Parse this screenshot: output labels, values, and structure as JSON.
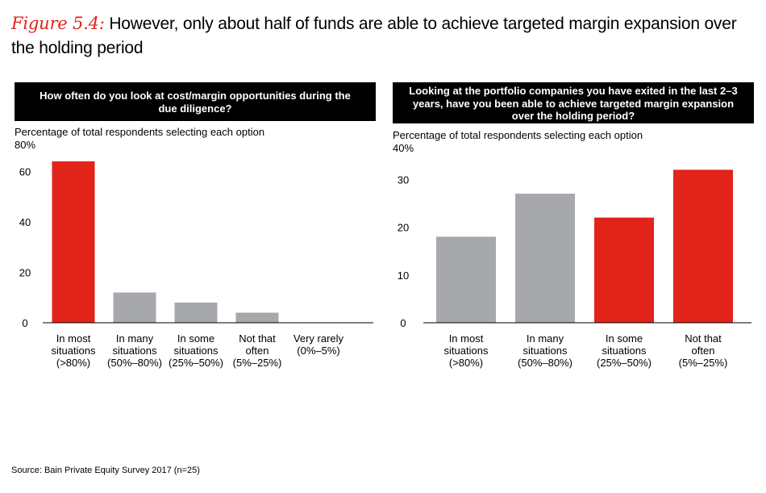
{
  "title": {
    "label": "Figure 5.4:",
    "text": "However, only about half of funds are able to achieve targeted margin expansion over the holding period"
  },
  "colors": {
    "highlight": "#e2231a",
    "neutral": "#a7a8ab",
    "axis": "#000000"
  },
  "chart_data": [
    {
      "type": "bar",
      "question": "How often do you look at cost/margin opportunities during the due diligence?",
      "subtitle": "Percentage of total respondents selecting each option",
      "top_tick_label": "80%",
      "categories": [
        [
          "In most",
          "situations",
          "(>80%)"
        ],
        [
          "In many",
          "situations",
          "(50%–80%)"
        ],
        [
          "In some",
          "situations",
          "(25%–50%)"
        ],
        [
          "Not that",
          "often",
          "(5%–25%)"
        ],
        [
          "Very rarely",
          "(0%–5%)"
        ]
      ],
      "values": [
        64,
        12,
        8,
        4,
        0
      ],
      "highlight": [
        true,
        false,
        false,
        false,
        false
      ],
      "yticks": [
        0,
        20,
        40,
        60
      ],
      "ylim": [
        0,
        80
      ]
    },
    {
      "type": "bar",
      "question": "Looking at the portfolio companies you have exited in the last 2–3 years, have you been able to achieve targeted margin expansion over the holding period?",
      "subtitle": "Percentage of total respondents selecting each option",
      "top_tick_label": "40%",
      "categories": [
        [
          "In most",
          "situations",
          "(>80%)"
        ],
        [
          "In many",
          "situations",
          "(50%–80%)"
        ],
        [
          "In some",
          "situations",
          "(25%–50%)"
        ],
        [
          "Not that",
          "often",
          "(5%–25%)"
        ]
      ],
      "values": [
        18,
        27,
        22,
        32
      ],
      "highlight": [
        false,
        false,
        true,
        true
      ],
      "yticks": [
        0,
        10,
        20,
        30
      ],
      "ylim": [
        0,
        40
      ]
    }
  ],
  "source": "Source: Bain Private Equity Survey 2017 (n=25)"
}
